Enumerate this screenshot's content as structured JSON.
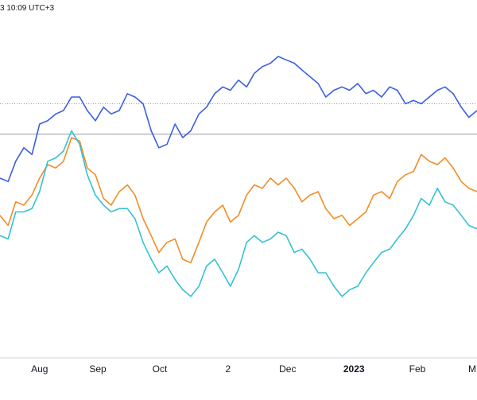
{
  "header": {
    "timestamp": "3 10:09 UTC+3"
  },
  "chart_data": {
    "type": "line",
    "title": "",
    "xlabel": "",
    "ylabel": "",
    "x_ticks": [
      {
        "label": "Aug",
        "x": 0.083,
        "bold": false
      },
      {
        "label": "Sep",
        "x": 0.205,
        "bold": false
      },
      {
        "label": "Oct",
        "x": 0.335,
        "bold": false
      },
      {
        "label": "2",
        "x": 0.478,
        "bold": false
      },
      {
        "label": "Dec",
        "x": 0.603,
        "bold": false
      },
      {
        "label": "2023",
        "x": 0.742,
        "bold": true
      },
      {
        "label": "Feb",
        "x": 0.875,
        "bold": false
      },
      {
        "label": "M",
        "x": 0.99,
        "bold": false
      }
    ],
    "reference_lines": [
      0.74,
      0.65
    ],
    "ylim": [
      0,
      1
    ],
    "colors": {
      "reference": "#9598a1",
      "grid": "#d1d4dc"
    },
    "series": [
      {
        "color": "#3c5fe0",
        "points": [
          [
            0,
            0.52
          ],
          [
            0.017,
            0.51
          ],
          [
            0.033,
            0.57
          ],
          [
            0.05,
            0.61
          ],
          [
            0.067,
            0.59
          ],
          [
            0.083,
            0.68
          ],
          [
            0.1,
            0.69
          ],
          [
            0.117,
            0.71
          ],
          [
            0.133,
            0.72
          ],
          [
            0.15,
            0.76
          ],
          [
            0.167,
            0.76
          ],
          [
            0.183,
            0.72
          ],
          [
            0.2,
            0.69
          ],
          [
            0.217,
            0.73
          ],
          [
            0.233,
            0.71
          ],
          [
            0.25,
            0.72
          ],
          [
            0.267,
            0.77
          ],
          [
            0.283,
            0.76
          ],
          [
            0.3,
            0.74
          ],
          [
            0.317,
            0.66
          ],
          [
            0.333,
            0.61
          ],
          [
            0.35,
            0.62
          ],
          [
            0.367,
            0.68
          ],
          [
            0.383,
            0.64
          ],
          [
            0.4,
            0.66
          ],
          [
            0.417,
            0.71
          ],
          [
            0.433,
            0.73
          ],
          [
            0.45,
            0.77
          ],
          [
            0.467,
            0.79
          ],
          [
            0.483,
            0.78
          ],
          [
            0.5,
            0.81
          ],
          [
            0.517,
            0.79
          ],
          [
            0.533,
            0.83
          ],
          [
            0.55,
            0.85
          ],
          [
            0.567,
            0.86
          ],
          [
            0.583,
            0.88
          ],
          [
            0.6,
            0.87
          ],
          [
            0.617,
            0.86
          ],
          [
            0.633,
            0.84
          ],
          [
            0.65,
            0.82
          ],
          [
            0.667,
            0.8
          ],
          [
            0.683,
            0.76
          ],
          [
            0.7,
            0.78
          ],
          [
            0.717,
            0.79
          ],
          [
            0.733,
            0.78
          ],
          [
            0.75,
            0.8
          ],
          [
            0.767,
            0.77
          ],
          [
            0.783,
            0.78
          ],
          [
            0.8,
            0.76
          ],
          [
            0.817,
            0.79
          ],
          [
            0.833,
            0.78
          ],
          [
            0.85,
            0.74
          ],
          [
            0.867,
            0.75
          ],
          [
            0.883,
            0.74
          ],
          [
            0.9,
            0.76
          ],
          [
            0.917,
            0.78
          ],
          [
            0.933,
            0.79
          ],
          [
            0.95,
            0.77
          ],
          [
            0.967,
            0.73
          ],
          [
            0.983,
            0.7
          ],
          [
            1.0,
            0.72
          ]
        ]
      },
      {
        "color": "#f28c28",
        "points": [
          [
            0,
            0.41
          ],
          [
            0.017,
            0.38
          ],
          [
            0.033,
            0.45
          ],
          [
            0.05,
            0.44
          ],
          [
            0.067,
            0.47
          ],
          [
            0.083,
            0.52
          ],
          [
            0.1,
            0.56
          ],
          [
            0.117,
            0.55
          ],
          [
            0.133,
            0.57
          ],
          [
            0.15,
            0.64
          ],
          [
            0.167,
            0.63
          ],
          [
            0.183,
            0.55
          ],
          [
            0.2,
            0.53
          ],
          [
            0.217,
            0.46
          ],
          [
            0.233,
            0.44
          ],
          [
            0.25,
            0.48
          ],
          [
            0.267,
            0.5
          ],
          [
            0.283,
            0.47
          ],
          [
            0.3,
            0.4
          ],
          [
            0.317,
            0.35
          ],
          [
            0.333,
            0.3
          ],
          [
            0.35,
            0.33
          ],
          [
            0.367,
            0.34
          ],
          [
            0.383,
            0.28
          ],
          [
            0.4,
            0.27
          ],
          [
            0.417,
            0.33
          ],
          [
            0.433,
            0.39
          ],
          [
            0.45,
            0.42
          ],
          [
            0.467,
            0.44
          ],
          [
            0.483,
            0.39
          ],
          [
            0.5,
            0.41
          ],
          [
            0.517,
            0.47
          ],
          [
            0.533,
            0.5
          ],
          [
            0.55,
            0.49
          ],
          [
            0.567,
            0.52
          ],
          [
            0.583,
            0.5
          ],
          [
            0.6,
            0.52
          ],
          [
            0.617,
            0.49
          ],
          [
            0.633,
            0.45
          ],
          [
            0.65,
            0.47
          ],
          [
            0.667,
            0.48
          ],
          [
            0.683,
            0.43
          ],
          [
            0.7,
            0.4
          ],
          [
            0.717,
            0.41
          ],
          [
            0.733,
            0.38
          ],
          [
            0.75,
            0.4
          ],
          [
            0.767,
            0.42
          ],
          [
            0.783,
            0.47
          ],
          [
            0.8,
            0.48
          ],
          [
            0.817,
            0.46
          ],
          [
            0.833,
            0.51
          ],
          [
            0.85,
            0.53
          ],
          [
            0.867,
            0.54
          ],
          [
            0.883,
            0.59
          ],
          [
            0.9,
            0.57
          ],
          [
            0.917,
            0.56
          ],
          [
            0.933,
            0.58
          ],
          [
            0.95,
            0.55
          ],
          [
            0.967,
            0.51
          ],
          [
            0.983,
            0.49
          ],
          [
            1.0,
            0.48
          ]
        ]
      },
      {
        "color": "#33c2d4",
        "points": [
          [
            0,
            0.35
          ],
          [
            0.017,
            0.34
          ],
          [
            0.033,
            0.42
          ],
          [
            0.05,
            0.42
          ],
          [
            0.067,
            0.43
          ],
          [
            0.083,
            0.48
          ],
          [
            0.1,
            0.57
          ],
          [
            0.117,
            0.58
          ],
          [
            0.133,
            0.6
          ],
          [
            0.15,
            0.66
          ],
          [
            0.167,
            0.62
          ],
          [
            0.183,
            0.53
          ],
          [
            0.2,
            0.47
          ],
          [
            0.217,
            0.44
          ],
          [
            0.233,
            0.42
          ],
          [
            0.25,
            0.43
          ],
          [
            0.267,
            0.43
          ],
          [
            0.283,
            0.4
          ],
          [
            0.3,
            0.33
          ],
          [
            0.317,
            0.28
          ],
          [
            0.333,
            0.24
          ],
          [
            0.35,
            0.26
          ],
          [
            0.367,
            0.22
          ],
          [
            0.383,
            0.19
          ],
          [
            0.4,
            0.17
          ],
          [
            0.417,
            0.2
          ],
          [
            0.433,
            0.26
          ],
          [
            0.45,
            0.28
          ],
          [
            0.467,
            0.24
          ],
          [
            0.483,
            0.2
          ],
          [
            0.5,
            0.25
          ],
          [
            0.517,
            0.33
          ],
          [
            0.533,
            0.35
          ],
          [
            0.55,
            0.33
          ],
          [
            0.567,
            0.34
          ],
          [
            0.583,
            0.36
          ],
          [
            0.6,
            0.35
          ],
          [
            0.617,
            0.3
          ],
          [
            0.633,
            0.31
          ],
          [
            0.65,
            0.28
          ],
          [
            0.667,
            0.24
          ],
          [
            0.683,
            0.24
          ],
          [
            0.7,
            0.2
          ],
          [
            0.717,
            0.17
          ],
          [
            0.733,
            0.19
          ],
          [
            0.75,
            0.2
          ],
          [
            0.767,
            0.24
          ],
          [
            0.783,
            0.27
          ],
          [
            0.8,
            0.3
          ],
          [
            0.817,
            0.31
          ],
          [
            0.833,
            0.34
          ],
          [
            0.85,
            0.37
          ],
          [
            0.867,
            0.41
          ],
          [
            0.883,
            0.46
          ],
          [
            0.9,
            0.44
          ],
          [
            0.917,
            0.49
          ],
          [
            0.933,
            0.45
          ],
          [
            0.95,
            0.44
          ],
          [
            0.967,
            0.41
          ],
          [
            0.983,
            0.38
          ],
          [
            1.0,
            0.37
          ]
        ]
      }
    ]
  }
}
